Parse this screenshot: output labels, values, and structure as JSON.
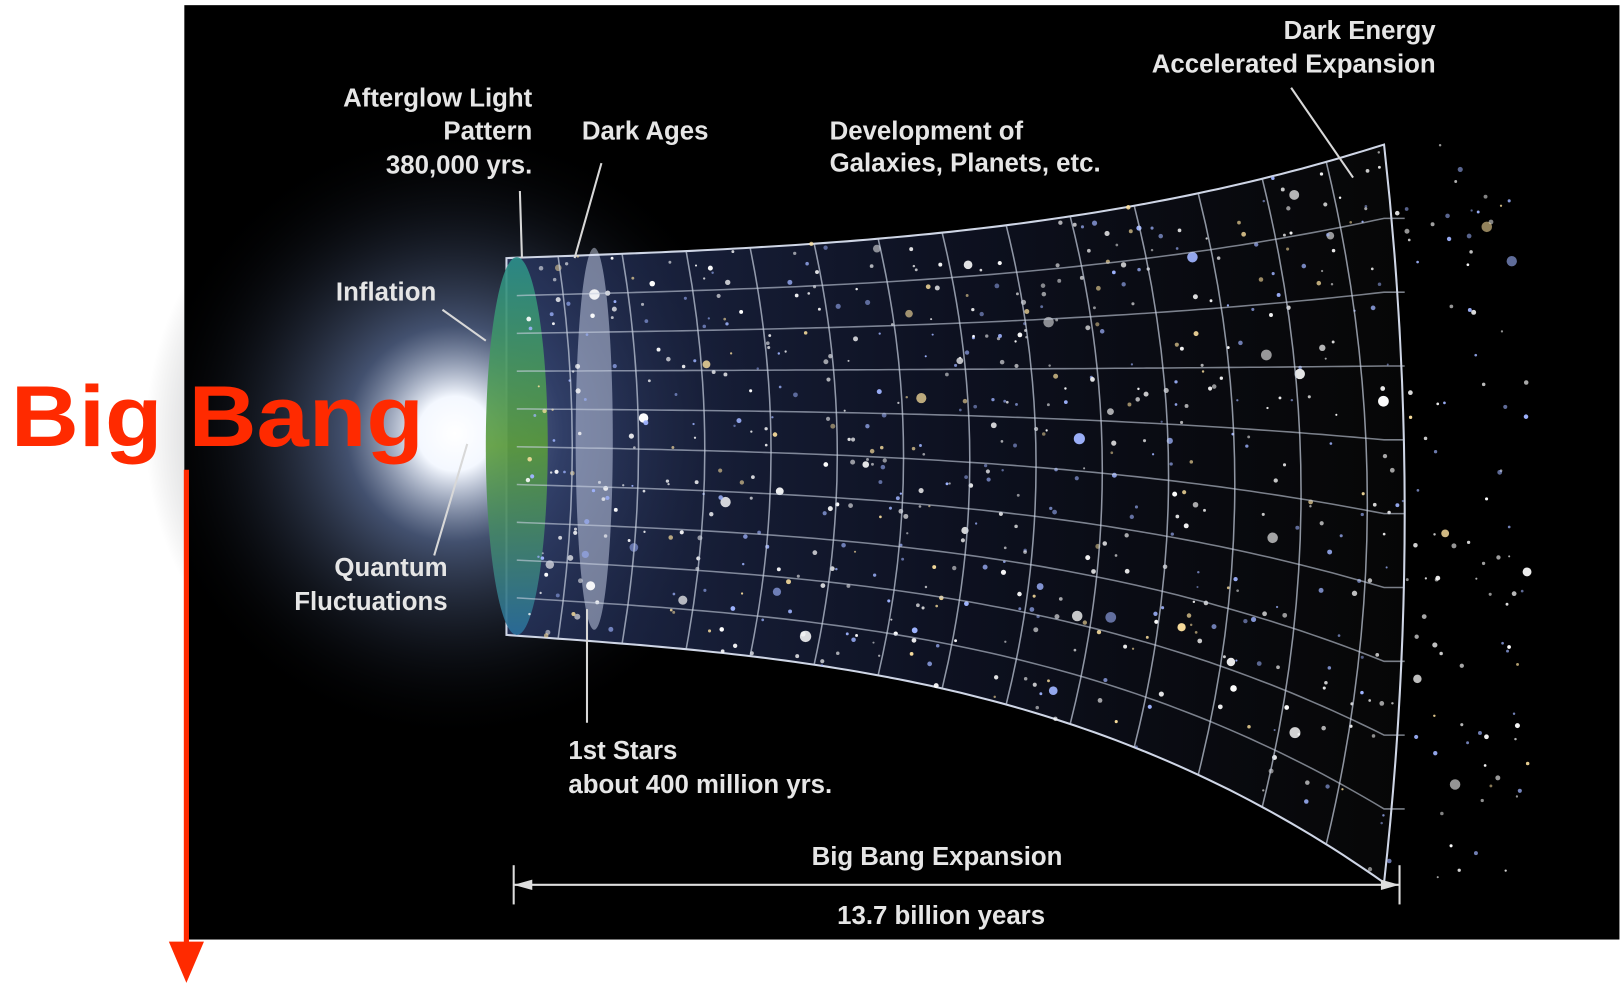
{
  "title_label": "Big Bang",
  "annotations": [
    {
      "lines": [
        "Dark Energy",
        "Accelerated Expansion"
      ]
    },
    {
      "lines": [
        "Afterglow Light",
        "Pattern",
        "380,000 yrs."
      ]
    },
    {
      "lines": [
        "Dark Ages"
      ]
    },
    {
      "lines": [
        "Development of",
        "Galaxies, Planets, etc."
      ]
    },
    {
      "lines": [
        "Inflation"
      ]
    },
    {
      "lines": [
        "Quantum",
        "Fluctuations"
      ]
    },
    {
      "lines": [
        "1st Stars",
        "about 400 million yrs."
      ]
    }
  ],
  "timeline": {
    "label": "Big Bang Expansion",
    "duration": "13.7 billion years"
  }
}
